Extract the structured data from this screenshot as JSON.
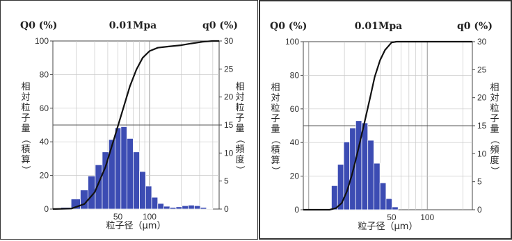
{
  "chart_data": [
    {
      "type": "bar",
      "title": "0.01Mpa",
      "left_axis_title": "Q0 (%)",
      "right_axis_title": "q0 (%)",
      "left_label": "相対粒子量（積算）",
      "right_label": "相対粒子量（頻度）",
      "xlabel": "粒子径（μm）",
      "x_ticks": [
        "50",
        "100"
      ],
      "left_ticks": [
        "0",
        "20",
        "40",
        "60",
        "80",
        "100"
      ],
      "right_ticks": [
        "0",
        "5",
        "10",
        "15",
        "20",
        "25",
        "30"
      ],
      "left_ylim": [
        0,
        100
      ],
      "right_ylim": [
        0,
        30
      ],
      "grid": true,
      "scale": "log",
      "bars": [
        {
          "x": 16,
          "q": 0.3
        },
        {
          "x": 20,
          "q": 1.8
        },
        {
          "x": 24,
          "q": 3.4
        },
        {
          "x": 28,
          "q": 5.9
        },
        {
          "x": 33,
          "q": 7.9
        },
        {
          "x": 38,
          "q": 10.2
        },
        {
          "x": 44,
          "q": 12.4
        },
        {
          "x": 50,
          "q": 14.5
        },
        {
          "x": 57,
          "q": 14.7
        },
        {
          "x": 65,
          "q": 12.6
        },
        {
          "x": 75,
          "q": 10.2
        },
        {
          "x": 86,
          "q": 6.7
        },
        {
          "x": 98,
          "q": 4.1
        },
        {
          "x": 112,
          "q": 2.1
        },
        {
          "x": 128,
          "q": 1.0
        },
        {
          "x": 146,
          "q": 0.5
        },
        {
          "x": 167,
          "q": 0.3
        },
        {
          "x": 191,
          "q": 0.4
        },
        {
          "x": 218,
          "q": 0.6
        },
        {
          "x": 250,
          "q": 0.7
        },
        {
          "x": 285,
          "q": 0.6
        },
        {
          "x": 326,
          "q": 0.3
        },
        {
          "x": 373,
          "q": 0.1
        }
      ],
      "cumulative": [
        {
          "x": 12,
          "y": 0
        },
        {
          "x": 18,
          "y": 0.3
        },
        {
          "x": 24,
          "y": 3
        },
        {
          "x": 30,
          "y": 10
        },
        {
          "x": 38,
          "y": 25
        },
        {
          "x": 46,
          "y": 42
        },
        {
          "x": 55,
          "y": 58
        },
        {
          "x": 65,
          "y": 73
        },
        {
          "x": 75,
          "y": 83
        },
        {
          "x": 86,
          "y": 90
        },
        {
          "x": 100,
          "y": 94
        },
        {
          "x": 120,
          "y": 96
        },
        {
          "x": 150,
          "y": 96.7
        },
        {
          "x": 200,
          "y": 97.5
        },
        {
          "x": 250,
          "y": 98.5
        },
        {
          "x": 320,
          "y": 99.5
        },
        {
          "x": 400,
          "y": 100
        },
        {
          "x": 460,
          "y": 100
        }
      ],
      "colors": {
        "bar": "#3c4cb3",
        "bar_edge": "#ffffff",
        "curve": "#111111"
      }
    },
    {
      "type": "bar",
      "title": "0.01Mpa",
      "left_axis_title": "Q0 (%)",
      "right_axis_title": "q0 (%)",
      "left_label": "相対粒子量（積算）",
      "right_label": "相対粒子量（頻度）",
      "xlabel": "粒子径（μm）",
      "x_ticks": [
        "50",
        "100"
      ],
      "left_ticks": [
        "0",
        "20",
        "40",
        "60",
        "80",
        "100"
      ],
      "right_ticks": [
        "0",
        "5",
        "10",
        "15",
        "20",
        "25",
        "30"
      ],
      "left_ylim": [
        0,
        100
      ],
      "right_ylim": [
        0,
        30
      ],
      "grid": true,
      "scale": "log",
      "bars": [
        {
          "x": 16.5,
          "q": 4.3
        },
        {
          "x": 18.6,
          "q": 8.1
        },
        {
          "x": 20.9,
          "q": 12.1
        },
        {
          "x": 23.5,
          "q": 14.6
        },
        {
          "x": 26.4,
          "q": 15.9
        },
        {
          "x": 29.7,
          "q": 15.5
        },
        {
          "x": 33.4,
          "q": 12.4
        },
        {
          "x": 37.6,
          "q": 8.3
        },
        {
          "x": 42.3,
          "q": 4.8
        },
        {
          "x": 47.6,
          "q": 2.0
        },
        {
          "x": 53.5,
          "q": 0.5
        }
      ],
      "cumulative": [
        {
          "x": 9,
          "y": 0
        },
        {
          "x": 15,
          "y": 0
        },
        {
          "x": 17,
          "y": 1
        },
        {
          "x": 19,
          "y": 4
        },
        {
          "x": 21,
          "y": 11
        },
        {
          "x": 23,
          "y": 20
        },
        {
          "x": 25,
          "y": 30
        },
        {
          "x": 27,
          "y": 40
        },
        {
          "x": 30,
          "y": 54
        },
        {
          "x": 33,
          "y": 67
        },
        {
          "x": 36,
          "y": 79
        },
        {
          "x": 40,
          "y": 89
        },
        {
          "x": 44,
          "y": 95
        },
        {
          "x": 50,
          "y": 99.5
        },
        {
          "x": 55,
          "y": 100
        },
        {
          "x": 240,
          "y": 100
        }
      ],
      "colors": {
        "bar": "#3c4cb3",
        "bar_edge": "#ffffff",
        "curve": "#111111"
      }
    }
  ]
}
